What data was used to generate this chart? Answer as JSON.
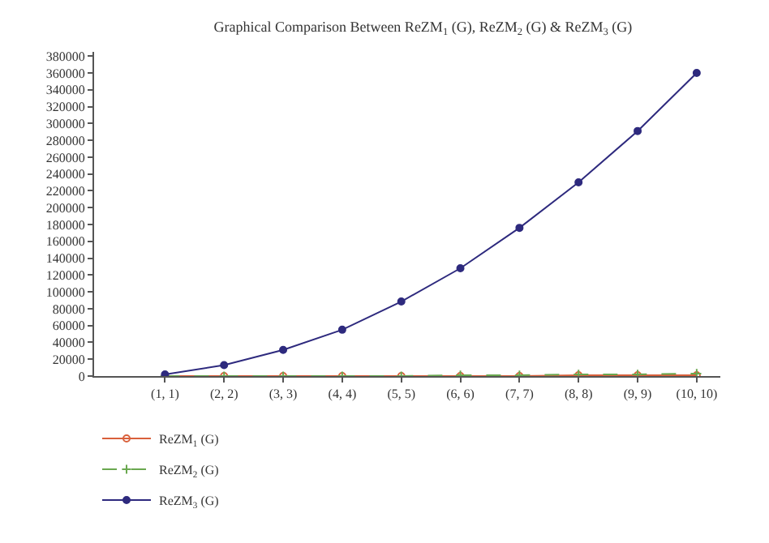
{
  "chart_data": {
    "type": "line",
    "title": "Graphical Comparison Between ReZM$_{1}$ (G), ReZM$_{2}$ (G) & ReZM$_{3}$ (G)",
    "categories": [
      "(1, 1)",
      "(2, 2)",
      "(3, 3)",
      "(4, 4)",
      "(5, 5)",
      "(6, 6)",
      "(7, 7)",
      "(8, 8)",
      "(9, 9)",
      "(10, 10)"
    ],
    "series": [
      {
        "name": "ReZM$_{1}$ (G)",
        "color": "#d9603b",
        "marker": "circle",
        "line_style": "solid",
        "values": [
          0,
          0,
          0,
          0,
          0,
          0,
          0,
          1000,
          1000,
          1000
        ]
      },
      {
        "name": "ReZM$_{2}$ (G)",
        "color": "#6aa84f",
        "marker": "cross",
        "line_style": "dashed",
        "values": [
          0,
          0,
          0,
          0,
          0,
          1000,
          1000,
          2000,
          2000,
          3000
        ]
      },
      {
        "name": "ReZM$_{3}$ (G)",
        "color": "#2e2a7e",
        "marker": "circle",
        "line_style": "solid",
        "values": [
          2000,
          13000,
          31000,
          55000,
          88500,
          128000,
          176000,
          230000,
          291000,
          360000
        ]
      }
    ],
    "ylim": [
      0,
      385000
    ],
    "yticks": [
      0,
      20000,
      40000,
      60000,
      80000,
      100000,
      120000,
      140000,
      160000,
      180000,
      200000,
      220000,
      240000,
      260000,
      280000,
      300000,
      320000,
      340000,
      360000,
      380000
    ],
    "legend": "bottom left"
  }
}
